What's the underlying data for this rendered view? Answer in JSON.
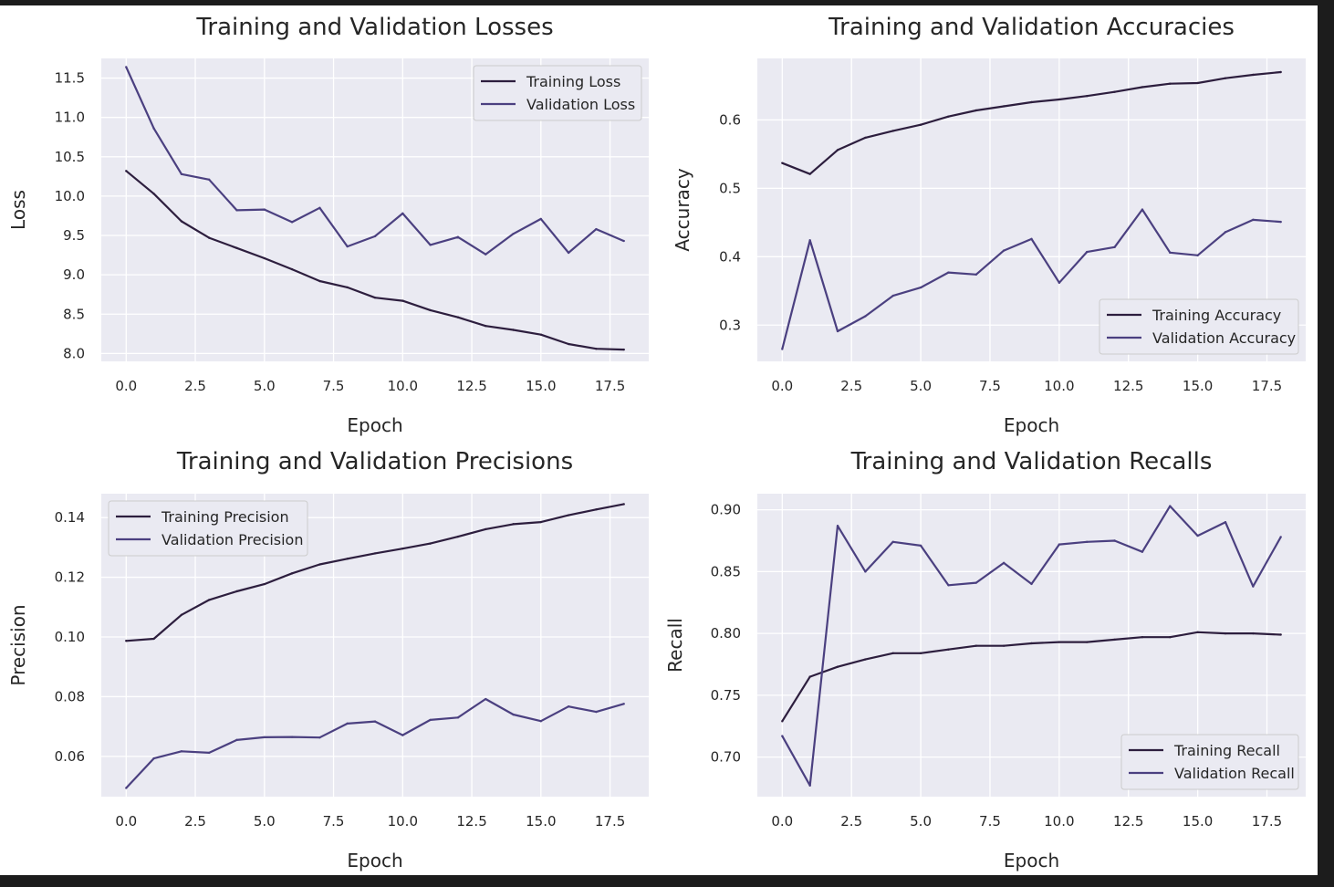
{
  "colors": {
    "figure_background": "#ffffff",
    "plot_background": "#eaeaf2",
    "grid": "#ffffff",
    "training": "#2d1e3e",
    "validation": "#4b4080"
  },
  "chart_data": [
    {
      "type": "line",
      "title": "Training and Validation Losses",
      "xlabel": "Epoch",
      "ylabel": "Loss",
      "xlim": [
        -0.9,
        18.9
      ],
      "ylim": [
        7.9,
        11.75
      ],
      "xticks": [
        0,
        2.5,
        5,
        7.5,
        10,
        12.5,
        15,
        17.5
      ],
      "xtick_labels": [
        "0.0",
        "2.5",
        "5.0",
        "7.5",
        "10.0",
        "12.5",
        "15.0",
        "17.5"
      ],
      "yticks": [
        8.0,
        8.5,
        9.0,
        9.5,
        10.0,
        10.5,
        11.0,
        11.5
      ],
      "ytick_labels": [
        "8.0",
        "8.5",
        "9.0",
        "9.5",
        "10.0",
        "10.5",
        "11.0",
        "11.5"
      ],
      "grid": true,
      "legend": "upper right",
      "x": [
        0,
        1,
        2,
        3,
        4,
        5,
        6,
        7,
        8,
        9,
        10,
        11,
        12,
        13,
        14,
        15,
        16,
        17,
        18
      ],
      "series": [
        {
          "name": "Training Loss",
          "role": "training",
          "values": [
            10.32,
            10.03,
            9.68,
            9.47,
            9.34,
            9.21,
            9.07,
            8.92,
            8.84,
            8.71,
            8.67,
            8.55,
            8.46,
            8.35,
            8.3,
            8.24,
            8.12,
            8.06,
            8.05
          ]
        },
        {
          "name": "Validation Loss",
          "role": "validation",
          "values": [
            11.64,
            10.86,
            10.28,
            10.21,
            9.82,
            9.83,
            9.67,
            9.85,
            9.36,
            9.49,
            9.78,
            9.38,
            9.48,
            9.26,
            9.52,
            9.71,
            9.28,
            9.58,
            9.43
          ]
        }
      ]
    },
    {
      "type": "line",
      "title": "Training and Validation Accuracies",
      "xlabel": "Epoch",
      "ylabel": "Accuracy",
      "xlim": [
        -0.9,
        18.9
      ],
      "ylim": [
        0.247,
        0.69
      ],
      "xticks": [
        0,
        2.5,
        5,
        7.5,
        10,
        12.5,
        15,
        17.5
      ],
      "xtick_labels": [
        "0.0",
        "2.5",
        "5.0",
        "7.5",
        "10.0",
        "12.5",
        "15.0",
        "17.5"
      ],
      "yticks": [
        0.3,
        0.4,
        0.5,
        0.6
      ],
      "ytick_labels": [
        "0.3",
        "0.4",
        "0.5",
        "0.6"
      ],
      "grid": true,
      "legend": "lower right",
      "x": [
        0,
        1,
        2,
        3,
        4,
        5,
        6,
        7,
        8,
        9,
        10,
        11,
        12,
        13,
        14,
        15,
        16,
        17,
        18
      ],
      "series": [
        {
          "name": "Training Accuracy",
          "role": "training",
          "values": [
            0.537,
            0.521,
            0.556,
            0.574,
            0.584,
            0.593,
            0.605,
            0.614,
            0.62,
            0.626,
            0.63,
            0.635,
            0.641,
            0.648,
            0.653,
            0.654,
            0.661,
            0.666,
            0.67
          ]
        },
        {
          "name": "Validation Accuracy",
          "role": "validation",
          "values": [
            0.265,
            0.424,
            0.291,
            0.313,
            0.343,
            0.355,
            0.377,
            0.374,
            0.409,
            0.426,
            0.362,
            0.407,
            0.414,
            0.469,
            0.406,
            0.402,
            0.436,
            0.454,
            0.451
          ]
        }
      ]
    },
    {
      "type": "line",
      "title": "Training and Validation Precisions",
      "xlabel": "Epoch",
      "ylabel": "Precision",
      "xlim": [
        -0.9,
        18.9
      ],
      "ylim": [
        0.0465,
        0.148
      ],
      "xticks": [
        0,
        2.5,
        5,
        7.5,
        10,
        12.5,
        15,
        17.5
      ],
      "xtick_labels": [
        "0.0",
        "2.5",
        "5.0",
        "7.5",
        "10.0",
        "12.5",
        "15.0",
        "17.5"
      ],
      "yticks": [
        0.06,
        0.08,
        0.1,
        0.12,
        0.14
      ],
      "ytick_labels": [
        "0.06",
        "0.08",
        "0.10",
        "0.12",
        "0.14"
      ],
      "grid": true,
      "legend": "upper left",
      "x": [
        0,
        1,
        2,
        3,
        4,
        5,
        6,
        7,
        8,
        9,
        10,
        11,
        12,
        13,
        14,
        15,
        16,
        17,
        18
      ],
      "series": [
        {
          "name": "Training Precision",
          "role": "training",
          "values": [
            0.0987,
            0.0994,
            0.1074,
            0.1124,
            0.1153,
            0.1177,
            0.1213,
            0.1243,
            0.1262,
            0.128,
            0.1296,
            0.1313,
            0.1336,
            0.1361,
            0.1378,
            0.1385,
            0.1408,
            0.1427,
            0.1445
          ]
        },
        {
          "name": "Validation Precision",
          "role": "validation",
          "values": [
            0.0494,
            0.0593,
            0.0617,
            0.0612,
            0.0655,
            0.0664,
            0.0665,
            0.0663,
            0.071,
            0.0717,
            0.0671,
            0.0722,
            0.073,
            0.0792,
            0.074,
            0.0718,
            0.0767,
            0.0749,
            0.0776
          ]
        }
      ]
    },
    {
      "type": "line",
      "title": "Training and Validation Recalls",
      "xlabel": "Epoch",
      "ylabel": "Recall",
      "xlim": [
        -0.9,
        18.9
      ],
      "ylim": [
        0.668,
        0.913
      ],
      "xticks": [
        0,
        2.5,
        5,
        7.5,
        10,
        12.5,
        15,
        17.5
      ],
      "xtick_labels": [
        "0.0",
        "2.5",
        "5.0",
        "7.5",
        "10.0",
        "12.5",
        "15.0",
        "17.5"
      ],
      "yticks": [
        0.7,
        0.75,
        0.8,
        0.85,
        0.9
      ],
      "ytick_labels": [
        "0.70",
        "0.75",
        "0.80",
        "0.85",
        "0.90"
      ],
      "grid": true,
      "legend": "lower right",
      "x": [
        0,
        1,
        2,
        3,
        4,
        5,
        6,
        7,
        8,
        9,
        10,
        11,
        12,
        13,
        14,
        15,
        16,
        17,
        18
      ],
      "series": [
        {
          "name": "Training Recall",
          "role": "training",
          "values": [
            0.729,
            0.765,
            0.773,
            0.779,
            0.784,
            0.784,
            0.787,
            0.79,
            0.79,
            0.792,
            0.793,
            0.793,
            0.795,
            0.797,
            0.797,
            0.801,
            0.8,
            0.8,
            0.799
          ]
        },
        {
          "name": "Validation Recall",
          "role": "validation",
          "values": [
            0.717,
            0.677,
            0.887,
            0.85,
            0.874,
            0.871,
            0.839,
            0.841,
            0.857,
            0.84,
            0.872,
            0.874,
            0.875,
            0.866,
            0.903,
            0.879,
            0.89,
            0.838,
            0.878
          ]
        }
      ]
    }
  ]
}
